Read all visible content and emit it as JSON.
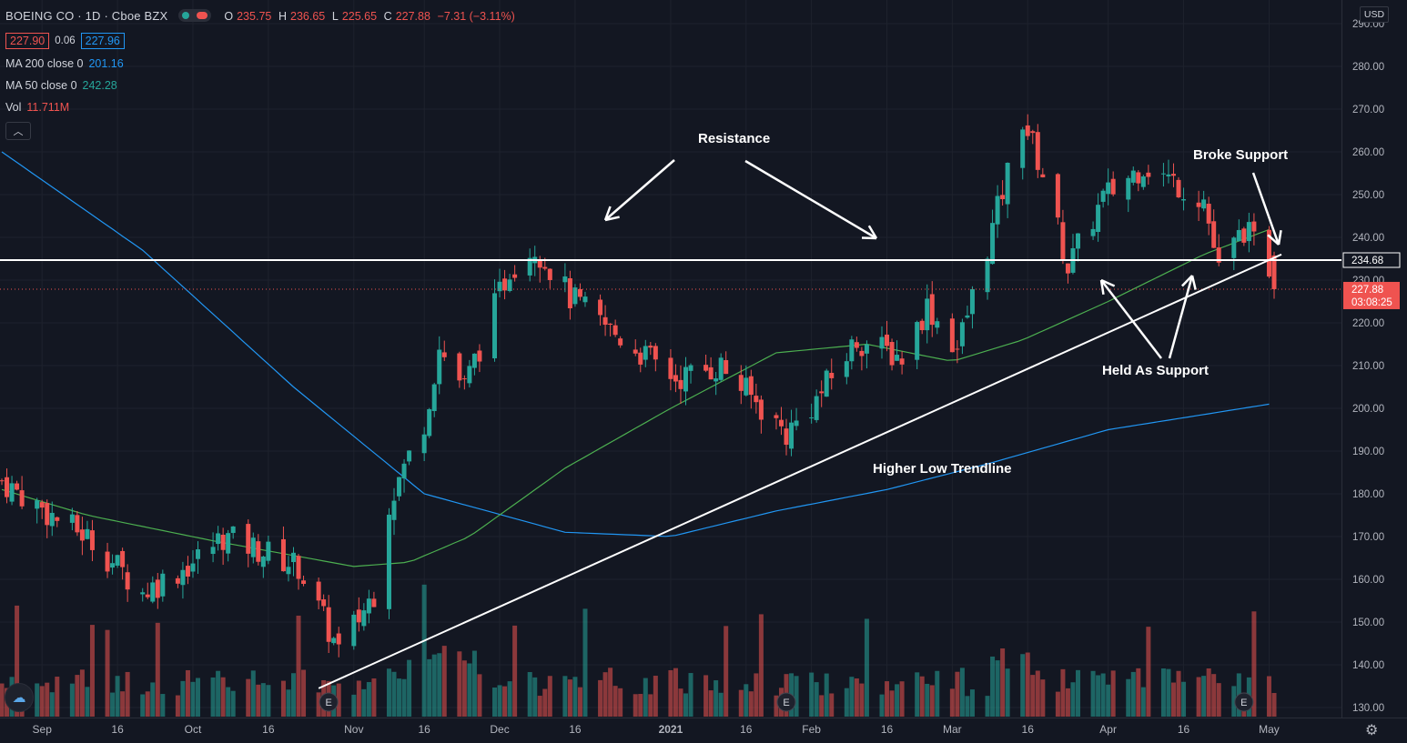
{
  "header": {
    "title": "BOEING CO · 1D · Cboe BZX",
    "ohlc": {
      "o_label": "O",
      "o": "235.75",
      "h_label": "H",
      "h": "236.65",
      "l_label": "L",
      "l": "225.65",
      "c_label": "C",
      "c": "227.88",
      "change": "−7.31 (−3.11%)"
    },
    "bid": "227.90",
    "spread": "0.06",
    "ask": "227.96",
    "ma200": {
      "label": "MA 200 close 0",
      "value": "201.16"
    },
    "ma50": {
      "label": "MA 50 close 0",
      "value": "242.28"
    },
    "vol": {
      "label": "Vol",
      "value": "11.711M"
    },
    "collapse_icon": "chevron-up-icon"
  },
  "currency": "USD",
  "annotations": {
    "resistance": "Resistance",
    "broke_support": "Broke Support",
    "held_as_support": "Held As Support",
    "higher_low_trendline": "Higher Low Trendline"
  },
  "price_tags": {
    "resistance_level": "234.68",
    "last_price": "227.88",
    "countdown": "03:08:25"
  },
  "earnings_marker": "E",
  "colors": {
    "up": "#26a69a",
    "down": "#ef5350",
    "ma200": "#2196f3",
    "ma50": "#4caf50",
    "background": "#131722",
    "grid": "#1e222d",
    "annotation": "#ffffff"
  },
  "chart_data": {
    "type": "candlestick",
    "title": "BOEING CO · 1D · Cboe BZX",
    "y_axis": {
      "ticks": [
        130,
        140,
        150,
        160,
        170,
        180,
        190,
        200,
        210,
        220,
        230,
        240,
        250,
        260,
        270,
        280,
        290
      ],
      "range": [
        128,
        293
      ],
      "unit": "USD"
    },
    "x_axis": {
      "ticks": [
        "Sep",
        "16",
        "Oct",
        "16",
        "Nov",
        "16",
        "Dec",
        "16",
        "2021",
        "16",
        "Feb",
        "16",
        "Mar",
        "16",
        "Apr",
        "16",
        "May"
      ]
    },
    "resistance_level": 234.68,
    "last_close": 227.88,
    "ma200_last": 201.16,
    "ma50_last": 242.28,
    "volume_last": "11.711M",
    "path_nodes": [
      {
        "date": "2020-08-24",
        "close": 183
      },
      {
        "date": "2020-09-04",
        "close": 174
      },
      {
        "date": "2020-09-10",
        "close": 170
      },
      {
        "date": "2020-09-21",
        "close": 157
      },
      {
        "date": "2020-10-01",
        "close": 164
      },
      {
        "date": "2020-10-07",
        "close": 170
      },
      {
        "date": "2020-10-14",
        "close": 167
      },
      {
        "date": "2020-10-22",
        "close": 163
      },
      {
        "date": "2020-10-30",
        "close": 143
      },
      {
        "date": "2020-11-06",
        "close": 157
      },
      {
        "date": "2020-11-09",
        "close": 178
      },
      {
        "date": "2020-11-16",
        "close": 197
      },
      {
        "date": "2020-11-19",
        "close": 214
      },
      {
        "date": "2020-11-24",
        "close": 205
      },
      {
        "date": "2020-12-03",
        "close": 233
      },
      {
        "date": "2020-12-08",
        "close": 238
      },
      {
        "date": "2020-12-15",
        "close": 226
      },
      {
        "date": "2020-12-21",
        "close": 220
      },
      {
        "date": "2021-01-05",
        "close": 207
      },
      {
        "date": "2021-01-14",
        "close": 210
      },
      {
        "date": "2021-01-27",
        "close": 194
      },
      {
        "date": "2021-02-02",
        "close": 202
      },
      {
        "date": "2021-02-10",
        "close": 216
      },
      {
        "date": "2021-02-19",
        "close": 212
      },
      {
        "date": "2021-02-24",
        "close": 224
      },
      {
        "date": "2021-03-02",
        "close": 214
      },
      {
        "date": "2021-03-09",
        "close": 242
      },
      {
        "date": "2021-03-15",
        "close": 268
      },
      {
        "date": "2021-03-19",
        "close": 255
      },
      {
        "date": "2021-03-24",
        "close": 233
      },
      {
        "date": "2021-03-31",
        "close": 249
      },
      {
        "date": "2021-04-08",
        "close": 257
      },
      {
        "date": "2021-04-20",
        "close": 249
      },
      {
        "date": "2021-04-23",
        "close": 232
      },
      {
        "date": "2021-04-28",
        "close": 242
      },
      {
        "date": "2021-05-03",
        "close": 233
      },
      {
        "date": "2021-05-04",
        "close": 227.88
      }
    ],
    "ma50_nodes": [
      {
        "date": "2020-08-24",
        "value": 181
      },
      {
        "date": "2020-09-10",
        "value": 175
      },
      {
        "date": "2020-10-05",
        "value": 169
      },
      {
        "date": "2020-11-02",
        "value": 163
      },
      {
        "date": "2020-11-13",
        "value": 164
      },
      {
        "date": "2020-11-25",
        "value": 170
      },
      {
        "date": "2020-12-14",
        "value": 186
      },
      {
        "date": "2021-01-04",
        "value": 200
      },
      {
        "date": "2021-01-25",
        "value": 213
      },
      {
        "date": "2021-02-12",
        "value": 215
      },
      {
        "date": "2021-03-01",
        "value": 211
      },
      {
        "date": "2021-03-15",
        "value": 216
      },
      {
        "date": "2021-04-01",
        "value": 225
      },
      {
        "date": "2021-04-20",
        "value": 236
      },
      {
        "date": "2021-05-04",
        "value": 242.28
      }
    ],
    "ma200_nodes": [
      {
        "date": "2020-08-24",
        "value": 260
      },
      {
        "date": "2020-09-21",
        "value": 237
      },
      {
        "date": "2020-10-21",
        "value": 205
      },
      {
        "date": "2020-11-16",
        "value": 180
      },
      {
        "date": "2020-12-14",
        "value": 171
      },
      {
        "date": "2021-01-04",
        "value": 170
      },
      {
        "date": "2021-01-25",
        "value": 176
      },
      {
        "date": "2021-02-16",
        "value": 181
      },
      {
        "date": "2021-03-08",
        "value": 187
      },
      {
        "date": "2021-04-01",
        "value": 195
      },
      {
        "date": "2021-05-04",
        "value": 201.16
      }
    ],
    "trendline": [
      {
        "date": "2020-10-26",
        "value": 134.5
      },
      {
        "date": "2021-05-04",
        "value": 236
      }
    ],
    "earnings_dates": [
      "2020-10-28",
      "2021-01-27",
      "2021-04-28"
    ]
  }
}
